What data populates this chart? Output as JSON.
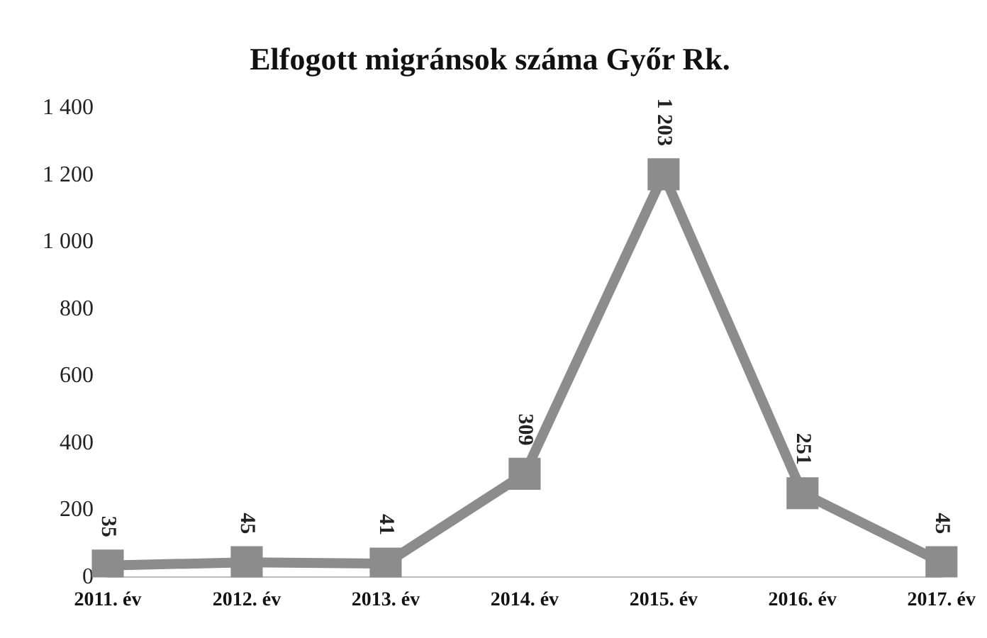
{
  "chart_data": {
    "type": "line",
    "title": "Elfogott migránsok száma Győr Rk.",
    "categories": [
      "2011. év",
      "2012. év",
      "2013. év",
      "2014. év",
      "2015. év",
      "2016. év",
      "2017. év"
    ],
    "series": [
      {
        "color": "#8c8c8c",
        "values": [
          35,
          45,
          41,
          309,
          1203,
          251,
          45
        ],
        "value_labels": [
          "35",
          "45",
          "41",
          "309",
          "1 203",
          "251",
          "45"
        ]
      }
    ],
    "ylim": [
      0,
      1400
    ],
    "yticks": [
      0,
      200,
      400,
      600,
      800,
      {
        "value": 1000,
        "label": "1 000"
      },
      {
        "value": 1200,
        "label": "1 200"
      },
      {
        "value": 1400,
        "label": "1 400"
      }
    ],
    "grid": false,
    "legend": false,
    "marker": "square",
    "line_style": "solid"
  }
}
